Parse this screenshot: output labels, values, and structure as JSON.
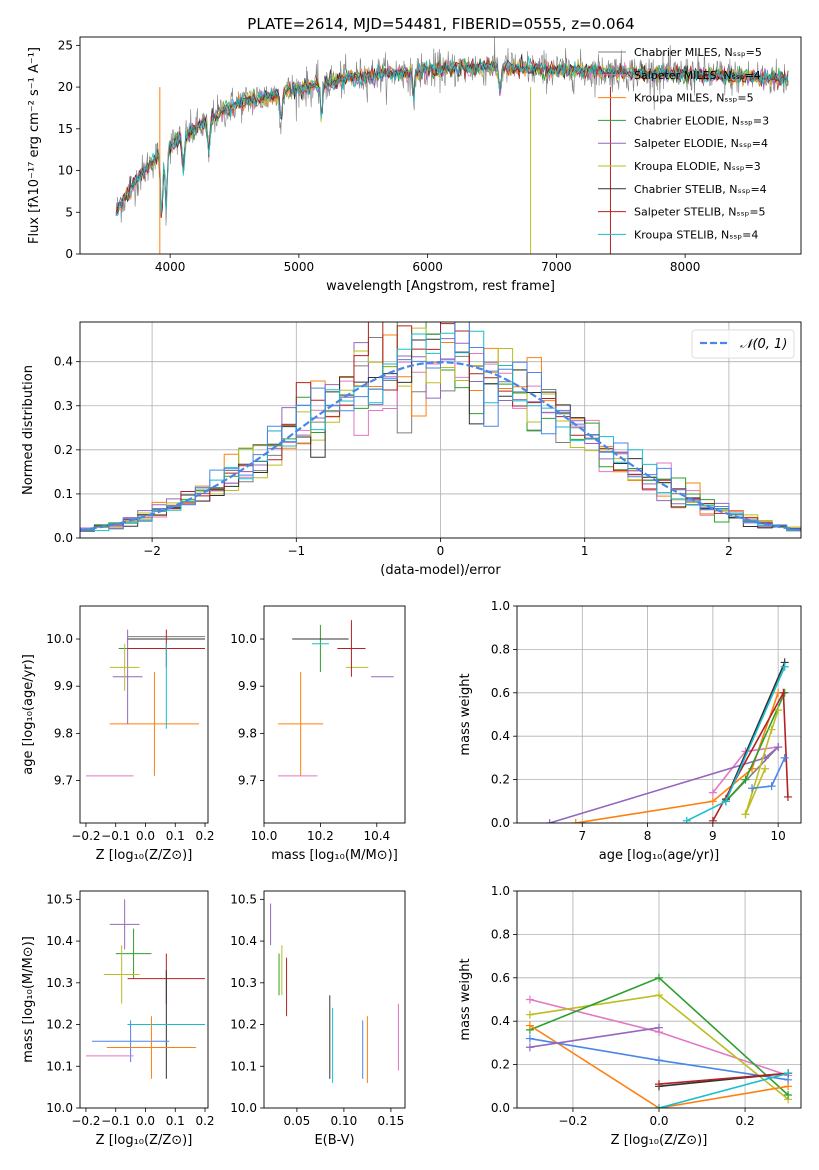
{
  "title": "PLATE=2614, MJD=54481, FIBERID=0555, z=0.064",
  "colors": {
    "chabrier_miles": "#7f7f7f",
    "salpeter_miles": "#e377c2",
    "kroupa_miles": "#ff7f0e",
    "chabrier_elodie": "#2ca02c",
    "salpeter_elodie": "#9467bd",
    "kroupa_elodie": "#bcbd22",
    "chabrier_stelib": "#333333",
    "salpeter_stelib": "#b22222",
    "kroupa_stelib": "#17becf",
    "normal_curve": "#4a86e8"
  },
  "chart_data": [
    {
      "id": "spectrum",
      "type": "line",
      "xlabel": "wavelength [Angstrom, rest frame]",
      "ylabel": "Flux [fλ10⁻¹⁷ erg cm⁻² s⁻¹ A⁻¹]",
      "xlim": [
        3300,
        8900
      ],
      "ylim": [
        0,
        26
      ],
      "xticks": [
        4000,
        5000,
        6000,
        7000,
        8000
      ],
      "yticks": [
        0,
        5,
        10,
        15,
        20,
        25
      ],
      "legend_placement": "right",
      "series": [
        {
          "name": "Chabrier MILES, Nₛₛₚ=5",
          "color": "#7f7f7f"
        },
        {
          "name": "Salpeter MILES, Nₛₛₚ=4",
          "color": "#e377c2"
        },
        {
          "name": "Kroupa MILES, Nₛₛₚ=5",
          "color": "#ff7f0e"
        },
        {
          "name": "Chabrier ELODIE, Nₛₛₚ=3",
          "color": "#2ca02c"
        },
        {
          "name": "Salpeter ELODIE, Nₛₛₚ=4",
          "color": "#9467bd"
        },
        {
          "name": "Kroupa ELODIE, Nₛₛₚ=3",
          "color": "#bcbd22"
        },
        {
          "name": "Chabrier STELIB, Nₛₛₚ=4",
          "color": "#333333"
        },
        {
          "name": "Salpeter STELIB, Nₛₛₚ=5",
          "color": "#b22222"
        },
        {
          "name": "Kroupa STELIB, Nₛₛₚ=4",
          "color": "#17becf"
        }
      ],
      "continuum": [
        [
          3580,
          5
        ],
        [
          3700,
          8
        ],
        [
          3850,
          11
        ],
        [
          4000,
          13
        ],
        [
          4200,
          15
        ],
        [
          4500,
          18
        ],
        [
          4800,
          19
        ],
        [
          5000,
          19.8
        ],
        [
          5300,
          20.8
        ],
        [
          5600,
          21.5
        ],
        [
          6000,
          22
        ],
        [
          6500,
          22.5
        ],
        [
          7000,
          22
        ],
        [
          7500,
          21.8
        ],
        [
          8000,
          21.5
        ],
        [
          8500,
          21.2
        ],
        [
          8800,
          21
        ]
      ]
    },
    {
      "id": "residuals",
      "type": "histogram",
      "xlabel": "(data-model)/error",
      "ylabel": "Normed distribution",
      "xlim": [
        -2.5,
        2.5
      ],
      "ylim": [
        0,
        0.49
      ],
      "xticks": [
        -2,
        -1,
        0,
        1,
        2
      ],
      "yticks": [
        0.0,
        0.1,
        0.2,
        0.3,
        0.4
      ],
      "grid": true,
      "legend_placement": "top-right",
      "legend": "𝒩(0, 1)",
      "bins": 50,
      "range": [
        -2.5,
        2.5
      ]
    },
    {
      "id": "z-age",
      "type": "errorbar",
      "xlabel": "Z [log₁₀(Z/Z⊙)]",
      "ylabel": "age  [log₁₀(age/yr)]",
      "xlim": [
        -0.22,
        0.21
      ],
      "ylim": [
        9.61,
        10.07
      ],
      "xticks": [
        -0.2,
        -0.1,
        0.0,
        0.1,
        0.2
      ],
      "yticks": [
        9.7,
        9.8,
        9.9,
        10.0
      ],
      "points": [
        {
          "series": "Chabrier MILES",
          "x": 0.07,
          "y": 10.005,
          "xerr": 0.13,
          "yerr": 0.0
        },
        {
          "series": "Salpeter MILES",
          "x": -0.12,
          "y": 9.71,
          "xerr": 0.08,
          "yerr": 0.0
        },
        {
          "series": "Kroupa MILES",
          "x": 0.03,
          "y": 9.82,
          "xerr": 0.15,
          "yerr": 0.11
        },
        {
          "series": "Chabrier ELODIE",
          "x": 0.0,
          "y": 9.98,
          "xerr": 0.09,
          "yerr": 0.0
        },
        {
          "series": "Salpeter ELODIE",
          "x": -0.06,
          "y": 9.92,
          "xerr": 0.05,
          "yerr": 0.1
        },
        {
          "series": "Kroupa ELODIE",
          "x": -0.07,
          "y": 9.94,
          "xerr": 0.05,
          "yerr": 0.05
        },
        {
          "series": "Chabrier STELIB",
          "x": 0.07,
          "y": 10.0,
          "xerr": 0.13,
          "yerr": 0.0
        },
        {
          "series": "Salpeter STELIB",
          "x": 0.07,
          "y": 9.98,
          "xerr": 0.13,
          "yerr": 0.04
        },
        {
          "series": "Kroupa STELIB",
          "x": 0.07,
          "y": 9.9,
          "xerr": 0.0,
          "yerr": 0.09
        }
      ]
    },
    {
      "id": "mass-age",
      "type": "errorbar",
      "xlabel": "mass [log₁₀(M/M⊙)]",
      "ylabel": "",
      "xlim": [
        10.0,
        10.5
      ],
      "ylim": [
        9.61,
        10.07
      ],
      "xticks": [
        10.0,
        10.2,
        10.4
      ],
      "yticks": [
        9.7,
        9.8,
        9.9,
        10.0
      ],
      "points": [
        {
          "series": "Chabrier MILES",
          "x": 10.19,
          "y": 10.0,
          "xerr": 0.0,
          "yerr": 0.0
        },
        {
          "series": "Salpeter MILES",
          "x": 10.12,
          "y": 9.71,
          "xerr": 0.07,
          "yerr": 0.0
        },
        {
          "series": "Kroupa MILES",
          "x": 10.13,
          "y": 9.82,
          "xerr": 0.08,
          "yerr": 0.11
        },
        {
          "series": "Chabrier ELODIE",
          "x": 10.2,
          "y": 9.98,
          "xerr": 0.0,
          "yerr": 0.05
        },
        {
          "series": "Salpeter ELODIE",
          "x": 10.42,
          "y": 9.92,
          "xerr": 0.04,
          "yerr": 0.0
        },
        {
          "series": "Kroupa ELODIE",
          "x": 10.33,
          "y": 9.94,
          "xerr": 0.04,
          "yerr": 0.0
        },
        {
          "series": "Chabrier STELIB",
          "x": 10.2,
          "y": 10.0,
          "xerr": 0.1,
          "yerr": 0.0
        },
        {
          "series": "Salpeter STELIB",
          "x": 10.31,
          "y": 9.98,
          "xerr": 0.05,
          "yerr": 0.06
        },
        {
          "series": "Kroupa STELIB",
          "x": 10.2,
          "y": 9.99,
          "xerr": 0.03,
          "yerr": 0.0
        }
      ]
    },
    {
      "id": "age-weight",
      "type": "line",
      "xlabel": "age  [log₁₀(age/yr)]",
      "ylabel": "mass weight",
      "xlim": [
        6.0,
        10.35
      ],
      "ylim": [
        0,
        1.0
      ],
      "xticks": [
        7,
        8,
        9,
        10
      ],
      "yticks": [
        0.0,
        0.2,
        0.4,
        0.6,
        0.8,
        1.0
      ],
      "grid": true,
      "series": [
        {
          "series": "Kroupa MILES",
          "x": [
            6.9,
            9.0,
            9.6,
            10.0
          ],
          "y": [
            0.0,
            0.1,
            0.25,
            0.6
          ]
        },
        {
          "series": "Chabrier MILES",
          "x": [
            9.2,
            10.0
          ],
          "y": [
            0.1,
            0.35
          ]
        },
        {
          "series": "Salpeter MILES",
          "x": [
            9.0,
            9.5,
            10.0
          ],
          "y": [
            0.14,
            0.33,
            0.35
          ]
        },
        {
          "series": "Salpeter ELODIE",
          "x": [
            6.5,
            9.8,
            10.0
          ],
          "y": [
            0.0,
            0.3,
            0.35
          ]
        },
        {
          "series": "Chabrier ELODIE",
          "x": [
            9.2,
            9.5,
            10.1
          ],
          "y": [
            0.1,
            0.2,
            0.6
          ]
        },
        {
          "series": "Kroupa ELODIE",
          "x": [
            9.5,
            9.9,
            10.0
          ],
          "y": [
            0.04,
            0.43,
            0.52
          ]
        },
        {
          "series": "Chabrier STELIB",
          "x": [
            9.2,
            10.1
          ],
          "y": [
            0.11,
            0.74
          ]
        },
        {
          "series": "Salpeter STELIB",
          "x": [
            9.0,
            10.08,
            10.15
          ],
          "y": [
            0.01,
            0.6,
            0.12
          ]
        },
        {
          "series": "Kroupa STELIB",
          "x": [
            8.6,
            9.2,
            10.1
          ],
          "y": [
            0.01,
            0.1,
            0.72
          ]
        },
        {
          "series": "Kroupa MILES b",
          "x": [
            9.5,
            9.8
          ],
          "y": [
            0.04,
            0.25
          ]
        },
        {
          "series": "Normal blue",
          "x": [
            9.6,
            9.9,
            10.1
          ],
          "y": [
            0.16,
            0.17,
            0.3
          ]
        }
      ]
    },
    {
      "id": "z-mass",
      "type": "errorbar",
      "xlabel": "Z [log₁₀(Z/Z⊙)]",
      "ylabel": "mass [log₁₀(M/M⊙)]",
      "xlim": [
        -0.22,
        0.21
      ],
      "ylim": [
        10.0,
        10.52
      ],
      "xticks": [
        -0.2,
        -0.1,
        0.0,
        0.1,
        0.2
      ],
      "yticks": [
        10.0,
        10.1,
        10.2,
        10.3,
        10.4,
        10.5
      ],
      "points": [
        {
          "series": "Salpeter ELODIE",
          "x": -0.07,
          "y": 10.44,
          "xerr": 0.05,
          "yerr": 0.06
        },
        {
          "series": "Chabrier ELODIE",
          "x": -0.04,
          "y": 10.37,
          "xerr": 0.06,
          "yerr": 0.06
        },
        {
          "series": "Kroupa ELODIE",
          "x": -0.08,
          "y": 10.32,
          "xerr": 0.06,
          "yerr": 0.07
        },
        {
          "series": "Salpeter STELIB",
          "x": 0.07,
          "y": 10.31,
          "xerr": 0.13,
          "yerr": 0.06
        },
        {
          "series": "Chabrier STELIB",
          "x": 0.07,
          "y": 10.2,
          "xerr": 0.13,
          "yerr": 0.13
        },
        {
          "series": "Kroupa STELIB",
          "x": 0.07,
          "y": 10.2,
          "xerr": 0.13,
          "yerr": 0.0
        },
        {
          "series": "Normal blue",
          "x": -0.05,
          "y": 10.16,
          "xerr": 0.13,
          "yerr": 0.05
        },
        {
          "series": "Kroupa MILES",
          "x": 0.02,
          "y": 10.145,
          "xerr": 0.15,
          "yerr": 0.075
        },
        {
          "series": "Salpeter MILES",
          "x": -0.12,
          "y": 10.125,
          "xerr": 0.08,
          "yerr": 0.0
        }
      ]
    },
    {
      "id": "ebv-mass",
      "type": "errorbar",
      "xlabel": "E(B-V)",
      "ylabel": "",
      "xlim": [
        0.015,
        0.165
      ],
      "ylim": [
        10.0,
        10.52
      ],
      "xticks": [
        0.05,
        0.1,
        0.15
      ],
      "yticks": [
        10.0,
        10.1,
        10.2,
        10.3,
        10.4,
        10.5
      ],
      "points": [
        {
          "series": "Salpeter ELODIE",
          "x": 0.022,
          "y": 10.44,
          "xerr": 0.0,
          "yerr": 0.05
        },
        {
          "series": "Chabrier ELODIE",
          "x": 0.031,
          "y": 10.32,
          "xerr": 0.0,
          "yerr": 0.05
        },
        {
          "series": "Kroupa ELODIE",
          "x": 0.034,
          "y": 10.33,
          "xerr": 0.0,
          "yerr": 0.06
        },
        {
          "series": "Salpeter STELIB",
          "x": 0.039,
          "y": 10.29,
          "xerr": 0.0,
          "yerr": 0.07
        },
        {
          "series": "Chabrier STELIB",
          "x": 0.085,
          "y": 10.17,
          "xerr": 0.0,
          "yerr": 0.1
        },
        {
          "series": "Kroupa STELIB",
          "x": 0.088,
          "y": 10.15,
          "xerr": 0.0,
          "yerr": 0.09
        },
        {
          "series": "Normal blue",
          "x": 0.12,
          "y": 10.14,
          "xerr": 0.0,
          "yerr": 0.07
        },
        {
          "series": "Kroupa MILES",
          "x": 0.125,
          "y": 10.14,
          "xerr": 0.0,
          "yerr": 0.08
        },
        {
          "series": "Salpeter MILES",
          "x": 0.158,
          "y": 10.17,
          "xerr": 0.0,
          "yerr": 0.08
        }
      ]
    },
    {
      "id": "z-weight",
      "type": "line",
      "xlabel": "Z [log₁₀(Z/Z⊙)]",
      "ylabel": "mass weight",
      "xlim": [
        -0.33,
        0.33
      ],
      "ylim": [
        0,
        1.0
      ],
      "xticks": [
        -0.2,
        0.0,
        0.2
      ],
      "yticks": [
        0.0,
        0.2,
        0.4,
        0.6,
        0.8,
        1.0
      ],
      "grid": true,
      "series": [
        {
          "series": "Salpeter MILES",
          "x": [
            -0.3,
            0.0,
            0.3
          ],
          "y": [
            0.5,
            0.35,
            0.15
          ]
        },
        {
          "series": "Kroupa ELODIE",
          "x": [
            -0.3,
            0.0,
            0.3
          ],
          "y": [
            0.43,
            0.52,
            0.04
          ]
        },
        {
          "series": "Chabrier ELODIE",
          "x": [
            -0.3,
            0.0,
            0.3
          ],
          "y": [
            0.36,
            0.6,
            0.06
          ]
        },
        {
          "series": "Kroupa MILES",
          "x": [
            -0.3,
            0.0,
            0.3
          ],
          "y": [
            0.38,
            0.0,
            0.1
          ]
        },
        {
          "series": "Normal blue",
          "x": [
            -0.3,
            0.0,
            0.3
          ],
          "y": [
            0.32,
            0.22,
            0.13
          ]
        },
        {
          "series": "Salpeter ELODIE",
          "x": [
            -0.3,
            0.0
          ],
          "y": [
            0.28,
            0.37
          ]
        },
        {
          "series": "Chabrier STELIB",
          "x": [
            0.0,
            0.3
          ],
          "y": [
            0.1,
            0.16
          ]
        },
        {
          "series": "Salpeter STELIB",
          "x": [
            0.0,
            0.3
          ],
          "y": [
            0.11,
            0.16
          ]
        },
        {
          "series": "Kroupa STELIB",
          "x": [
            0.0,
            0.3
          ],
          "y": [
            0.0,
            0.16
          ]
        }
      ]
    }
  ]
}
